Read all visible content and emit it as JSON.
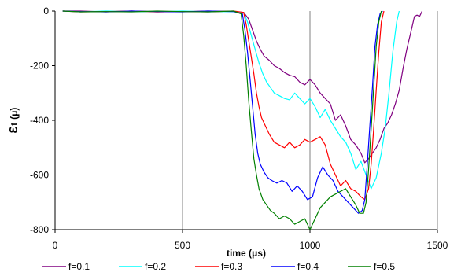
{
  "chart_data": {
    "type": "line",
    "title": "",
    "xlabel": "time (μs)",
    "ylabel_symbol": "ε",
    "ylabel_sub": "t",
    "ylabel_unit": "(μ)",
    "xlim": [
      0,
      1500
    ],
    "ylim": [
      -800,
      0
    ],
    "xticks": [
      0,
      500,
      1000,
      1500
    ],
    "yticks": [
      0,
      -200,
      -400,
      -600,
      -800
    ],
    "grid": "vertical",
    "legend_position": "bottom",
    "series": [
      {
        "name": "f=0.1",
        "color": "#800080",
        "x": [
          30,
          100,
          200,
          300,
          400,
          500,
          600,
          700,
          740,
          760,
          775,
          790,
          805,
          820,
          840,
          860,
          880,
          900,
          920,
          940,
          960,
          980,
          1000,
          1020,
          1040,
          1060,
          1080,
          1100,
          1120,
          1140,
          1160,
          1180,
          1200,
          1215,
          1230,
          1245,
          1260,
          1275,
          1290,
          1305,
          1320,
          1335,
          1350,
          1365,
          1380,
          1395,
          1410,
          1420,
          1430,
          1440
        ],
        "y": [
          0,
          0,
          -3,
          0,
          -3,
          -2,
          0,
          -2,
          -5,
          -30,
          -70,
          -110,
          -140,
          -165,
          -180,
          -200,
          -210,
          -225,
          -235,
          -240,
          -260,
          -270,
          -250,
          -270,
          -300,
          -320,
          -340,
          -400,
          -380,
          -420,
          -470,
          -490,
          -520,
          -555,
          -540,
          -520,
          -500,
          -470,
          -430,
          -410,
          -380,
          -340,
          -290,
          -210,
          -140,
          -80,
          -20,
          -15,
          -20,
          0
        ]
      },
      {
        "name": "f=0.2",
        "color": "#00FFFF",
        "x": [
          30,
          100,
          200,
          300,
          400,
          500,
          600,
          700,
          740,
          755,
          770,
          785,
          800,
          815,
          830,
          845,
          860,
          880,
          900,
          920,
          940,
          960,
          980,
          1000,
          1020,
          1040,
          1060,
          1080,
          1100,
          1120,
          1140,
          1160,
          1180,
          1200,
          1220,
          1240,
          1260,
          1280,
          1295,
          1310,
          1325,
          1340,
          1350
        ],
        "y": [
          0,
          -3,
          0,
          -2,
          -3,
          0,
          -3,
          -2,
          -5,
          -40,
          -90,
          -140,
          -190,
          -230,
          -260,
          -280,
          -300,
          -310,
          -320,
          -325,
          -300,
          -320,
          -340,
          -320,
          -350,
          -390,
          -360,
          -400,
          -430,
          -460,
          -480,
          -520,
          -580,
          -550,
          -600,
          -650,
          -610,
          -520,
          -430,
          -300,
          -150,
          -40,
          0
        ]
      },
      {
        "name": "f=0.3",
        "color": "#FF0000",
        "x": [
          30,
          100,
          200,
          300,
          400,
          500,
          600,
          700,
          740,
          750,
          760,
          770,
          780,
          790,
          800,
          810,
          825,
          840,
          860,
          880,
          900,
          920,
          940,
          960,
          980,
          1000,
          1020,
          1040,
          1060,
          1080,
          1100,
          1120,
          1140,
          1160,
          1180,
          1200,
          1215,
          1230,
          1240,
          1250,
          1260,
          1270,
          1280,
          1290
        ],
        "y": [
          0,
          -3,
          -2,
          0,
          -3,
          -2,
          -3,
          0,
          -5,
          -50,
          -110,
          -170,
          -230,
          -300,
          -350,
          -390,
          -420,
          -450,
          -480,
          -490,
          -500,
          -480,
          -500,
          -490,
          -470,
          -480,
          -470,
          -460,
          -490,
          -560,
          -600,
          -640,
          -620,
          -650,
          -660,
          -680,
          -690,
          -650,
          -560,
          -430,
          -290,
          -150,
          -40,
          0
        ]
      },
      {
        "name": "f=0.4",
        "color": "#0000FF",
        "x": [
          30,
          100,
          200,
          300,
          400,
          500,
          600,
          700,
          735,
          745,
          755,
          765,
          775,
          785,
          795,
          805,
          820,
          835,
          850,
          870,
          890,
          910,
          930,
          950,
          970,
          990,
          1010,
          1030,
          1050,
          1070,
          1090,
          1110,
          1130,
          1150,
          1170,
          1190,
          1205,
          1215,
          1225,
          1235,
          1245,
          1255,
          1265,
          1275,
          1285
        ],
        "y": [
          0,
          -2,
          -3,
          0,
          -2,
          -3,
          0,
          -2,
          -10,
          -70,
          -150,
          -250,
          -350,
          -450,
          -520,
          -560,
          -590,
          -610,
          -620,
          -630,
          -620,
          -630,
          -660,
          -640,
          -660,
          -690,
          -680,
          -610,
          -570,
          -600,
          -620,
          -660,
          -680,
          -700,
          -720,
          -740,
          -730,
          -690,
          -560,
          -420,
          -280,
          -130,
          -50,
          -10,
          0
        ]
      },
      {
        "name": "f=0.5",
        "color": "#008000",
        "x": [
          30,
          100,
          200,
          300,
          400,
          500,
          600,
          700,
          730,
          740,
          750,
          760,
          770,
          780,
          790,
          800,
          815,
          830,
          845,
          860,
          880,
          900,
          920,
          940,
          960,
          980,
          1000,
          1020,
          1040,
          1060,
          1080,
          1100,
          1120,
          1140,
          1160,
          1180,
          1195,
          1210,
          1220,
          1230,
          1240,
          1250,
          1260,
          1270,
          1280
        ],
        "y": [
          0,
          -3,
          -2,
          -3,
          0,
          -2,
          -3,
          0,
          -10,
          -90,
          -200,
          -330,
          -440,
          -540,
          -600,
          -650,
          -690,
          -710,
          -730,
          -740,
          -760,
          -750,
          -760,
          -780,
          -770,
          -760,
          -800,
          -760,
          -720,
          -700,
          -680,
          -670,
          -660,
          -650,
          -680,
          -710,
          -740,
          -740,
          -700,
          -580,
          -430,
          -280,
          -130,
          -40,
          0
        ]
      }
    ]
  }
}
